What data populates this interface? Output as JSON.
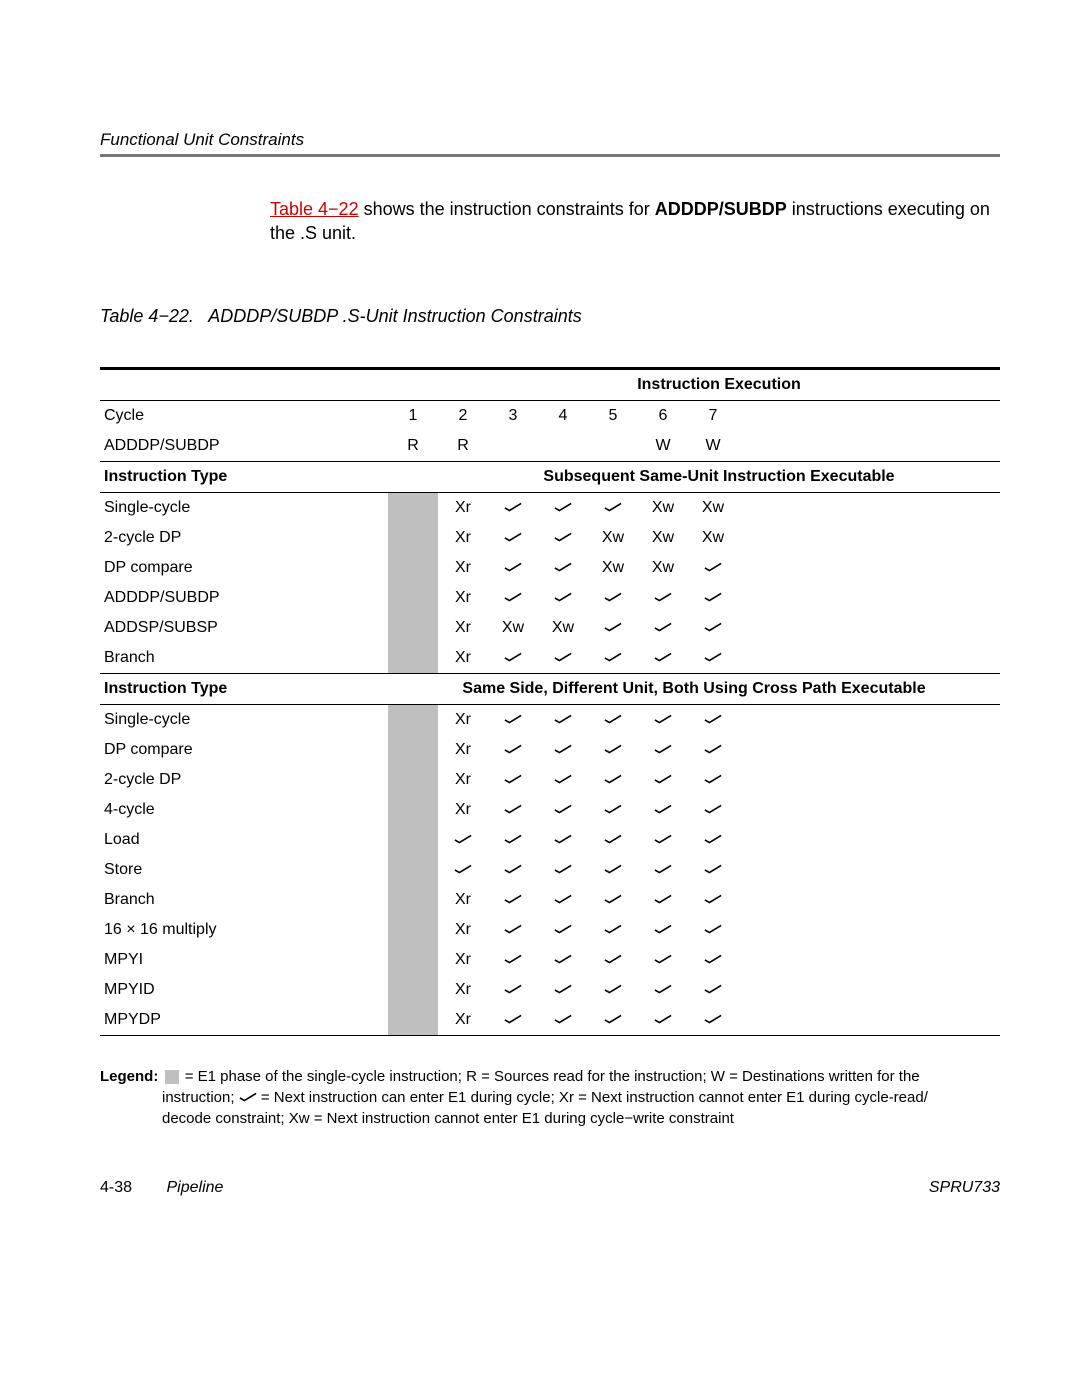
{
  "section_header": "Functional Unit Constraints",
  "intro": {
    "ref": "Table 4−22",
    "text1": " shows the instruction constraints for ",
    "bold": "ADDDP/SUBDP",
    "text2": " instructions executing on the .S unit."
  },
  "caption": {
    "num": "Table 4−22.",
    "title": "ADDDP/SUBDP .S-Unit Instruction Constraints"
  },
  "col_header": "Instruction Execution",
  "cycle_labels": {
    "label": "Cycle",
    "cols": [
      "1",
      "2",
      "3",
      "4",
      "5",
      "6",
      "7"
    ]
  },
  "row_rw": {
    "label": "ADDDP/SUBDP",
    "cols": [
      "R",
      "R",
      "",
      "",
      "",
      "W",
      "W"
    ]
  },
  "sec1_header": {
    "left": "Instruction Type",
    "right": "Subsequent Same-Unit Instruction Executable"
  },
  "sec1_rows": [
    {
      "label": "Single-cycle",
      "cells": [
        "Xr",
        "✓",
        "✓",
        "✓",
        "Xw",
        "Xw"
      ]
    },
    {
      "label": "2-cycle DP",
      "cells": [
        "Xr",
        "✓",
        "✓",
        "Xw",
        "Xw",
        "Xw"
      ]
    },
    {
      "label": "DP compare",
      "cells": [
        "Xr",
        "✓",
        "✓",
        "Xw",
        "Xw",
        "✓"
      ]
    },
    {
      "label": "ADDDP/SUBDP",
      "cells": [
        "Xr",
        "✓",
        "✓",
        "✓",
        "✓",
        "✓"
      ]
    },
    {
      "label": "ADDSP/SUBSP",
      "cells": [
        "Xr",
        "Xw",
        "Xw",
        "✓",
        "✓",
        "✓"
      ]
    },
    {
      "label": "Branch",
      "cells": [
        "Xr",
        "✓",
        "✓",
        "✓",
        "✓",
        "✓"
      ]
    }
  ],
  "sec2_header": {
    "left": "Instruction Type",
    "right": "Same Side, Different Unit, Both Using Cross Path Executable"
  },
  "sec2_rows": [
    {
      "label": "Single-cycle",
      "cells": [
        "Xr",
        "✓",
        "✓",
        "✓",
        "✓",
        "✓"
      ]
    },
    {
      "label": "DP compare",
      "cells": [
        "Xr",
        "✓",
        "✓",
        "✓",
        "✓",
        "✓"
      ]
    },
    {
      "label": "2-cycle DP",
      "cells": [
        "Xr",
        "✓",
        "✓",
        "✓",
        "✓",
        "✓"
      ]
    },
    {
      "label": "4-cycle",
      "cells": [
        "Xr",
        "✓",
        "✓",
        "✓",
        "✓",
        "✓"
      ]
    },
    {
      "label": "Load",
      "cells": [
        "✓",
        "✓",
        "✓",
        "✓",
        "✓",
        "✓"
      ]
    },
    {
      "label": "Store",
      "cells": [
        "✓",
        "✓",
        "✓",
        "✓",
        "✓",
        "✓"
      ]
    },
    {
      "label": "Branch",
      "cells": [
        "Xr",
        "✓",
        "✓",
        "✓",
        "✓",
        "✓"
      ]
    },
    {
      "label": "16 × 16 multiply",
      "cells": [
        "Xr",
        "✓",
        "✓",
        "✓",
        "✓",
        "✓"
      ]
    },
    {
      "label": "MPYI",
      "cells": [
        "Xr",
        "✓",
        "✓",
        "✓",
        "✓",
        "✓"
      ]
    },
    {
      "label": "MPYID",
      "cells": [
        "Xr",
        "✓",
        "✓",
        "✓",
        "✓",
        "✓"
      ]
    },
    {
      "label": "MPYDP",
      "cells": [
        "Xr",
        "✓",
        "✓",
        "✓",
        "✓",
        "✓"
      ]
    }
  ],
  "legend": {
    "label": "Legend:",
    "line1a": " = E1 phase of the single-cycle instruction; R = Sources read for the instruction; W = Destinations written for the",
    "line2": "instruction; ",
    "line2b": " = Next instruction can enter E1 during cycle; Xr = Next instruction cannot enter E1 during cycle-read/",
    "line3": "decode constraint; Xw = Next instruction cannot enter E1 during cycle−write constraint"
  },
  "footer": {
    "page": "4-38",
    "chapter": "Pipeline",
    "doc": "SPRU733"
  }
}
